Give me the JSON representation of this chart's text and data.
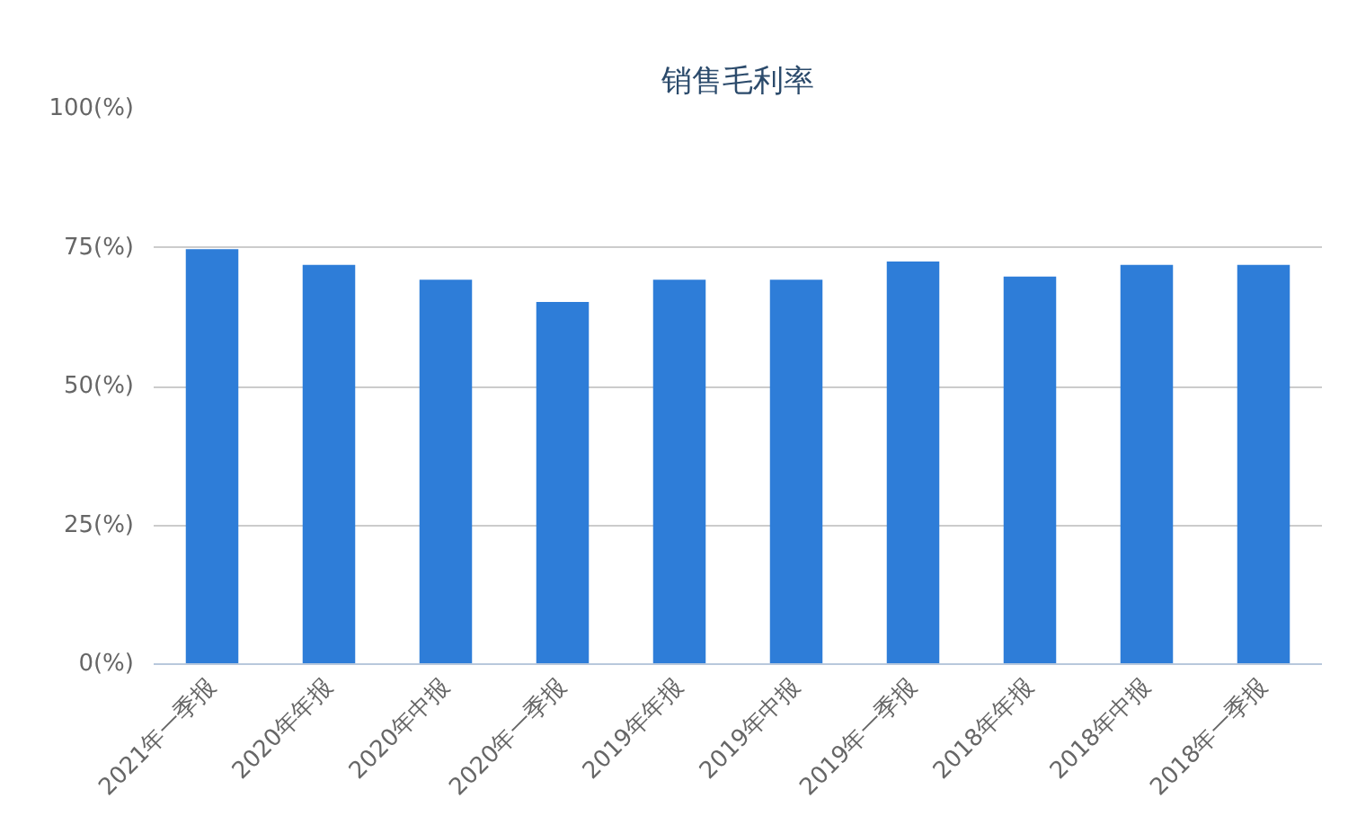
{
  "chart_data": {
    "type": "bar",
    "title": "销售毛利率",
    "categories": [
      "2021年一季报",
      "2020年年报",
      "2020年中报",
      "2020年一季报",
      "2019年年报",
      "2019年中报",
      "2019年一季报",
      "2018年年报",
      "2018年中报",
      "2018年一季报"
    ],
    "values": [
      74.7,
      71.9,
      69.2,
      65.2,
      69.2,
      69.2,
      72.5,
      69.8,
      71.9,
      71.9
    ],
    "color": "#2e7dd8",
    "ylim": [
      0,
      100
    ],
    "yticks": [
      {
        "value": 0,
        "label": "0(%)"
      },
      {
        "value": 25,
        "label": "25(%)"
      },
      {
        "value": 50,
        "label": "50(%)"
      },
      {
        "value": 75,
        "label": "75(%)"
      },
      {
        "value": 100,
        "label": "100(%)"
      }
    ],
    "grid": "y"
  }
}
